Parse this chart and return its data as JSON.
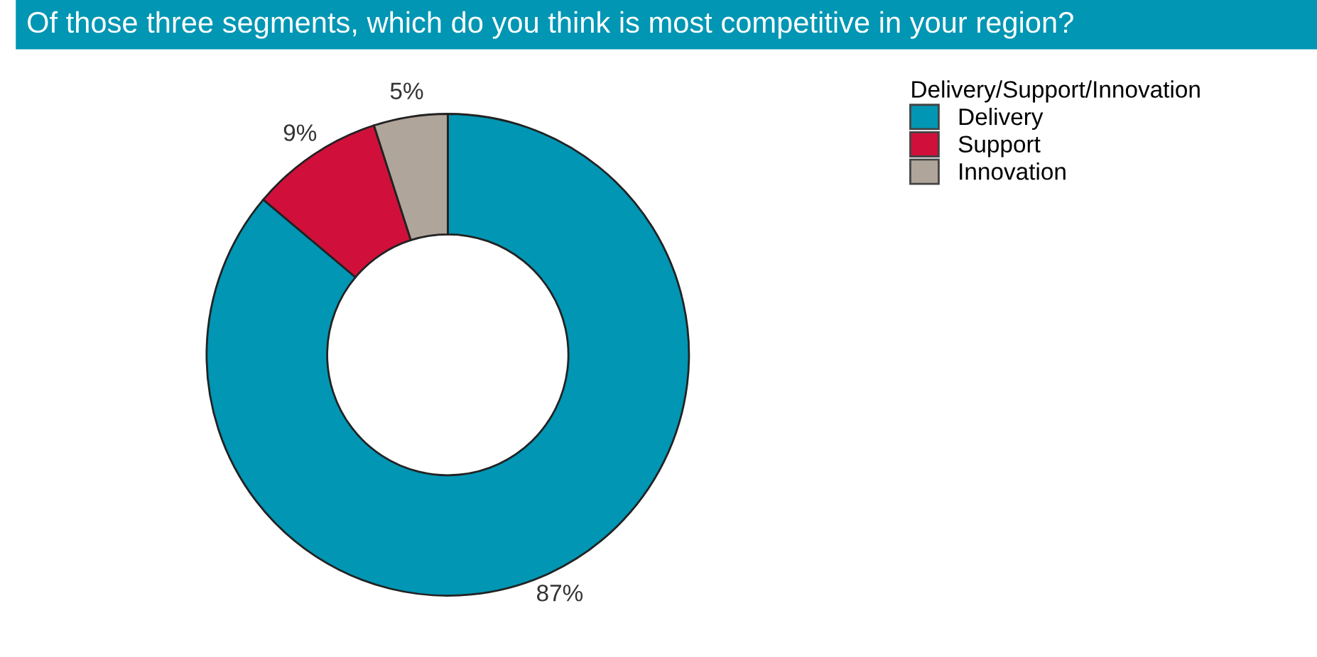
{
  "chart_data": {
    "type": "donut",
    "title": "Of those three segments, which do you think is most competitive in your region?",
    "legend_title": "Delivery/Support/Innovation",
    "categories": [
      "Delivery",
      "Support",
      "Innovation"
    ],
    "values": [
      87,
      9,
      5
    ],
    "colors": [
      "#0096b4",
      "#d0103a",
      "#b0a59a"
    ],
    "value_labels": [
      "87%",
      "9%",
      "5%"
    ],
    "legend": "top right"
  }
}
